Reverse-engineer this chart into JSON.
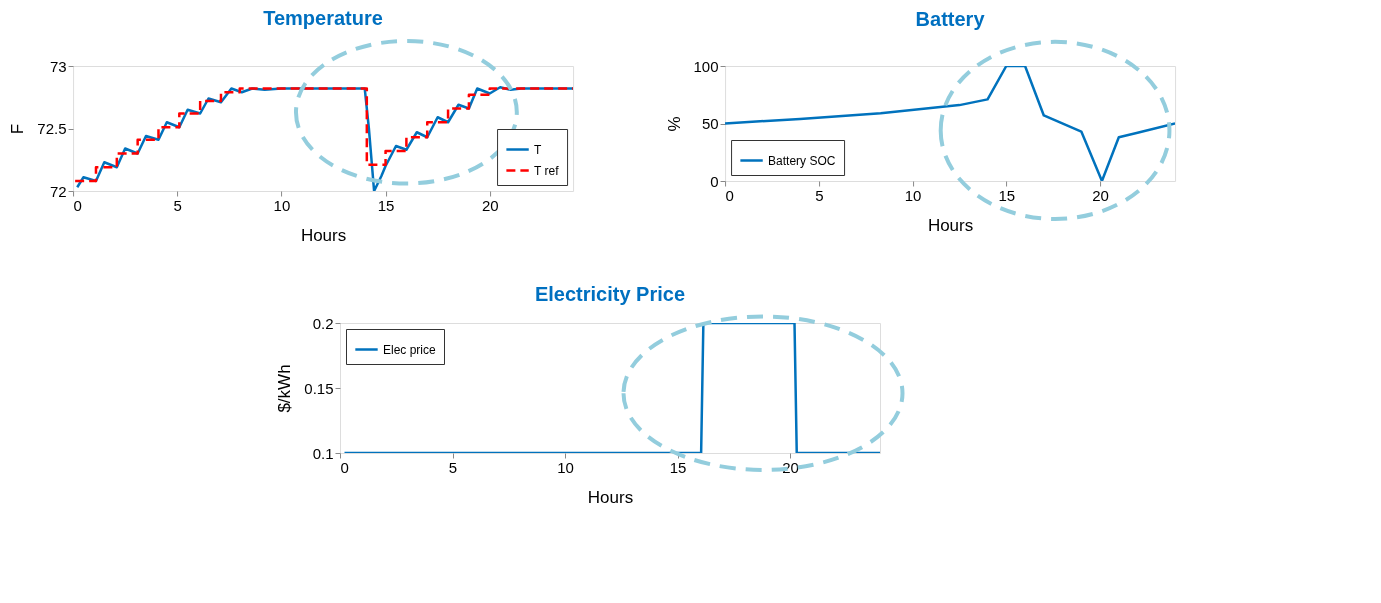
{
  "chart_data": [
    {
      "type": "line",
      "title": "Temperature",
      "xlabel": "Hours",
      "ylabel": "F",
      "xlim": [
        0,
        24
      ],
      "xticks": [
        0,
        5,
        10,
        15,
        20
      ],
      "ylim": [
        72,
        73
      ],
      "yticks": [
        72,
        72.5,
        73
      ],
      "legend": "bottom right",
      "series": [
        {
          "name": "T",
          "type": "line",
          "color": "#0072bd",
          "line_style": "solid",
          "x": [
            0.2,
            0.5,
            1.1,
            1.5,
            2.1,
            2.5,
            3.1,
            3.5,
            4.1,
            4.5,
            5.1,
            5.5,
            6.1,
            6.5,
            7.1,
            7.6,
            8.1,
            8.6,
            9.2,
            10,
            14.0,
            14.2,
            14.45,
            14.8,
            15.0,
            15.5,
            16.0,
            16.5,
            17.0,
            17.5,
            18.0,
            18.5,
            19.0,
            19.4,
            20.0,
            20.5,
            21.0,
            21.5,
            24
          ],
          "values": [
            72.03,
            72.11,
            72.08,
            72.23,
            72.19,
            72.34,
            72.3,
            72.44,
            72.41,
            72.55,
            72.51,
            72.65,
            72.62,
            72.74,
            72.71,
            72.82,
            72.79,
            72.82,
            72.81,
            72.82,
            72.82,
            72.5,
            72.0,
            72.12,
            72.2,
            72.36,
            72.33,
            72.47,
            72.43,
            72.59,
            72.55,
            72.69,
            72.66,
            72.82,
            72.78,
            72.83,
            72.81,
            72.82,
            72.82
          ]
        },
        {
          "name": "T ref",
          "type": "step",
          "color": "#ff0000",
          "line_style": "dashed",
          "x": [
            0.1,
            1.1,
            2.1,
            3.1,
            4.1,
            5.1,
            6.1,
            7.1,
            8.0,
            14.1,
            15.0,
            16.0,
            17.0,
            18.0,
            19.0,
            20.0,
            24
          ],
          "values": [
            72.08,
            72.19,
            72.3,
            72.41,
            72.51,
            72.62,
            72.72,
            72.79,
            72.82,
            72.21,
            72.32,
            72.43,
            72.55,
            72.66,
            72.77,
            72.82,
            72.82
          ]
        }
      ]
    },
    {
      "type": "line",
      "title": "Battery",
      "xlabel": "Hours",
      "ylabel": "%",
      "xlim": [
        0,
        24
      ],
      "xticks": [
        0,
        5,
        10,
        15,
        20
      ],
      "ylim": [
        0,
        100
      ],
      "yticks": [
        0,
        50,
        100
      ],
      "legend": "bottom left",
      "series": [
        {
          "name": "Battery SOC",
          "color": "#0072bd",
          "line_style": "solid",
          "x": [
            0,
            4,
            8.3,
            12.5,
            14,
            15,
            16,
            17,
            19,
            20.1,
            21,
            22,
            24
          ],
          "values": [
            50,
            54,
            59,
            66,
            71,
            100,
            100,
            57,
            43,
            0,
            38,
            42,
            50
          ]
        }
      ]
    },
    {
      "type": "line",
      "title": "Electricity Price",
      "xlabel": "Hours",
      "ylabel": "$/kWh",
      "xlim": [
        0,
        24
      ],
      "xticks": [
        0,
        5,
        10,
        15,
        20
      ],
      "ylim": [
        0.1,
        0.2
      ],
      "yticks": [
        0.1,
        0.15,
        0.2
      ],
      "legend": "top left",
      "series": [
        {
          "name": "Elec price",
          "color": "#0072bd",
          "line_style": "solid",
          "x": [
            0.2,
            16.05,
            16.15,
            20.2,
            20.3,
            24
          ],
          "values": [
            0.1,
            0.1,
            0.2,
            0.2,
            0.1,
            0.1
          ]
        }
      ]
    }
  ]
}
